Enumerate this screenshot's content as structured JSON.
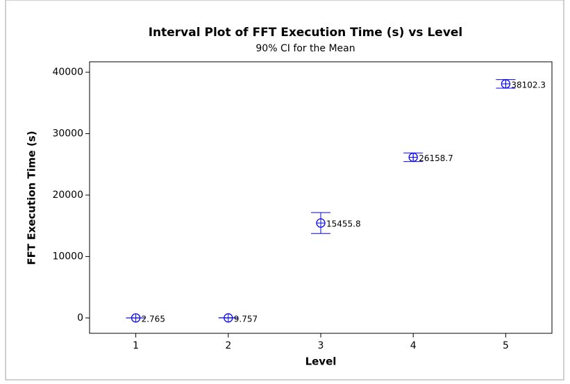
{
  "chart_data": {
    "type": "interval",
    "title": "Interval Plot of FFT Execution Time (s) vs Level",
    "subtitle": "90% CI for the Mean",
    "x_label": "Level",
    "y_label": "FFT Execution Time (s)",
    "x": [
      1,
      2,
      3,
      4,
      5
    ],
    "values": [
      2.765,
      9.757,
      15455.8,
      26158.7,
      38102.3
    ],
    "errors": [
      0,
      0,
      1700,
      700,
      700
    ],
    "color": "#0000ff",
    "xlim": [
      0.5,
      5.5
    ],
    "xticks": [
      1,
      2,
      3,
      4,
      5
    ],
    "ylim": [
      -2500,
      41700
    ],
    "yticks": [
      0,
      10000,
      20000,
      30000,
      40000
    ]
  }
}
